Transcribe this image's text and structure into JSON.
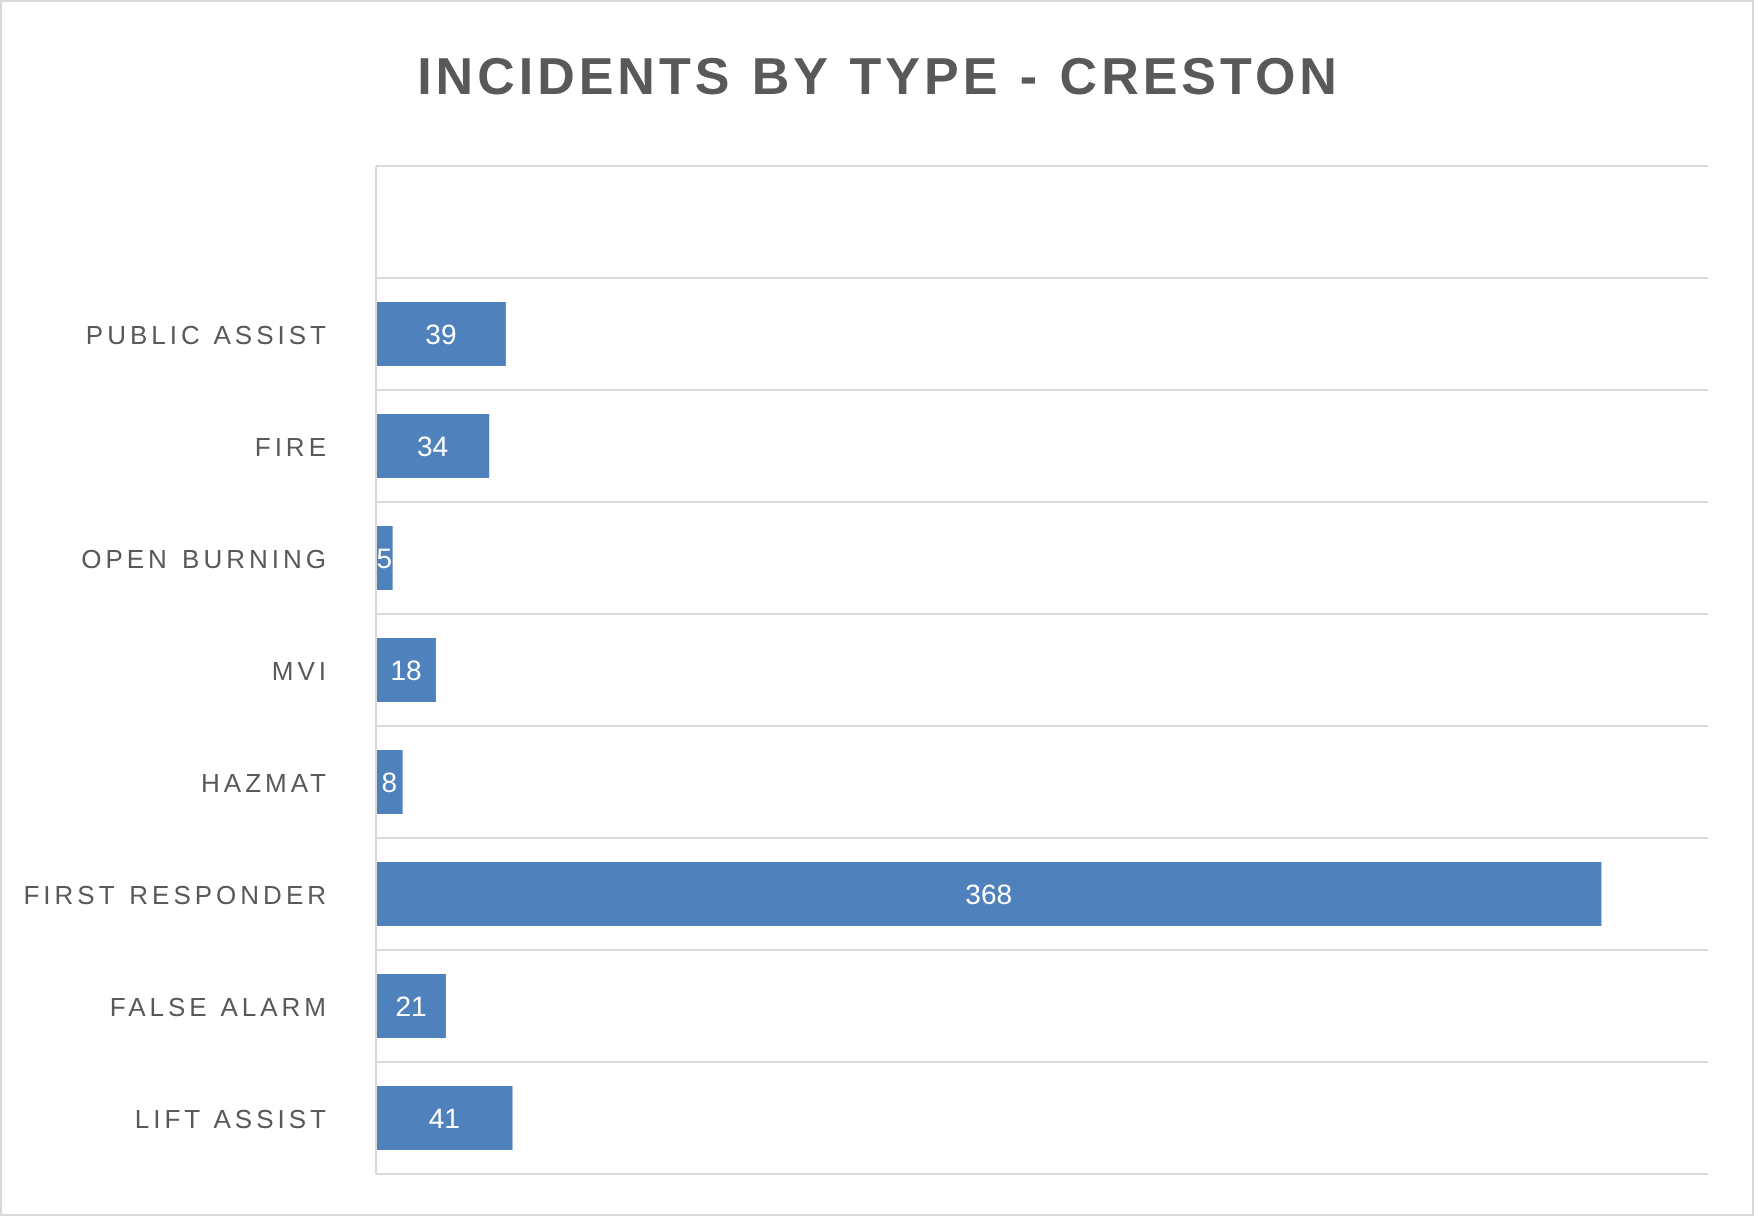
{
  "chart_data": {
    "type": "bar",
    "orientation": "horizontal",
    "title": "INCIDENTS BY TYPE - CRESTON",
    "categories": [
      null,
      "PUBLIC ASSIST",
      "FIRE",
      "OPEN BURNING",
      "MVI",
      "HAZMAT",
      "FIRST RESPONDER",
      "FALSE ALARM",
      "LIFT ASSIST"
    ],
    "values": [
      null,
      39,
      34,
      5,
      18,
      8,
      368,
      21,
      41
    ],
    "color": "#4f81bd",
    "xlim": [
      0,
      400
    ],
    "tick_labels": "y",
    "grid": "y",
    "data_labels": true,
    "legend": false
  }
}
